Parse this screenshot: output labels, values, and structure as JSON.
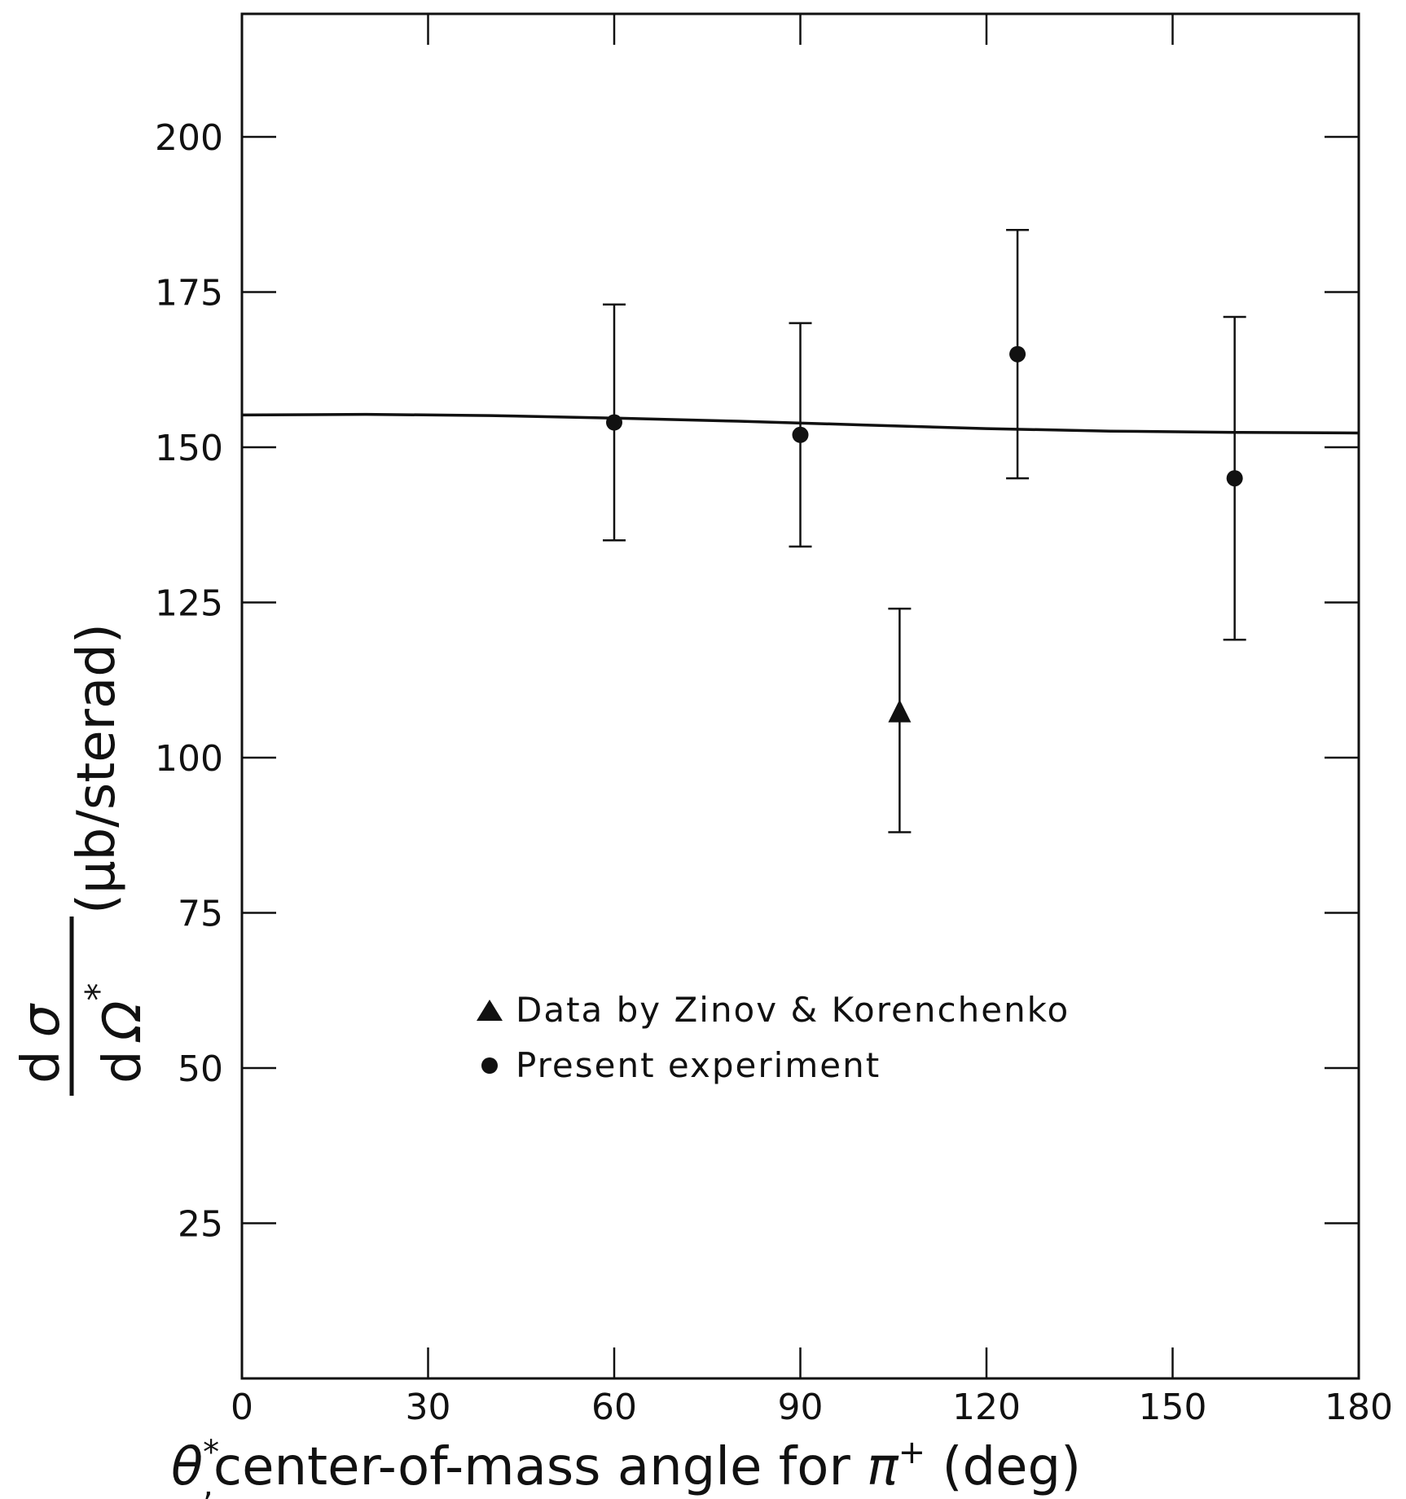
{
  "chart_data": {
    "type": "scatter",
    "xlabel": {
      "prefix": "θ",
      "prefix_sup": "*",
      "prefix_sub": ",",
      "main": "center-of-mass angle  for ",
      "pi": "π",
      "pi_sup": "+",
      "unit": " (deg)"
    },
    "ylabel": {
      "num_d": "d",
      "num_sym": "σ",
      "den_d": "d",
      "den_sym": "Ω",
      "den_sup": "*",
      "unit": "(μb/sterad)"
    },
    "xlim": [
      0,
      180
    ],
    "ylim": [
      0,
      220
    ],
    "x_ticks": [
      0,
      30,
      60,
      90,
      120,
      150,
      180
    ],
    "x_tick_labels": [
      "0",
      "30",
      "60",
      "90",
      "120",
      "150",
      "180"
    ],
    "y_ticks": [
      25,
      50,
      75,
      100,
      125,
      150,
      175,
      200
    ],
    "y_tick_labels": [
      "25",
      "50",
      "75",
      "100",
      "125",
      "150",
      "175",
      "200"
    ],
    "grid": false,
    "legend": {
      "placement": "center-left",
      "entries": [
        {
          "marker": "triangle",
          "label": "Data by Zinov & Korenchenko"
        },
        {
          "marker": "circle",
          "label": "Present experiment"
        }
      ]
    },
    "series": [
      {
        "name": "Data by Zinov & Korenchenko",
        "marker": "triangle",
        "points": [
          {
            "x": 106,
            "y": 107,
            "err_low": 88,
            "err_high": 124
          }
        ]
      },
      {
        "name": "Present experiment",
        "marker": "circle",
        "points": [
          {
            "x": 60,
            "y": 154,
            "err_low": 135,
            "err_high": 173
          },
          {
            "x": 90,
            "y": 152,
            "err_low": 134,
            "err_high": 170
          },
          {
            "x": 125,
            "y": 165,
            "err_low": 145,
            "err_high": 185
          },
          {
            "x": 160,
            "y": 145,
            "err_low": 119,
            "err_high": 171
          }
        ]
      },
      {
        "type": "line",
        "curve": [
          [
            0,
            155.2
          ],
          [
            20,
            155.3
          ],
          [
            40,
            155.1
          ],
          [
            60,
            154.7
          ],
          [
            80,
            154.2
          ],
          [
            100,
            153.6
          ],
          [
            120,
            153.0
          ],
          [
            140,
            152.6
          ],
          [
            160,
            152.4
          ],
          [
            180,
            152.3
          ]
        ]
      }
    ]
  }
}
